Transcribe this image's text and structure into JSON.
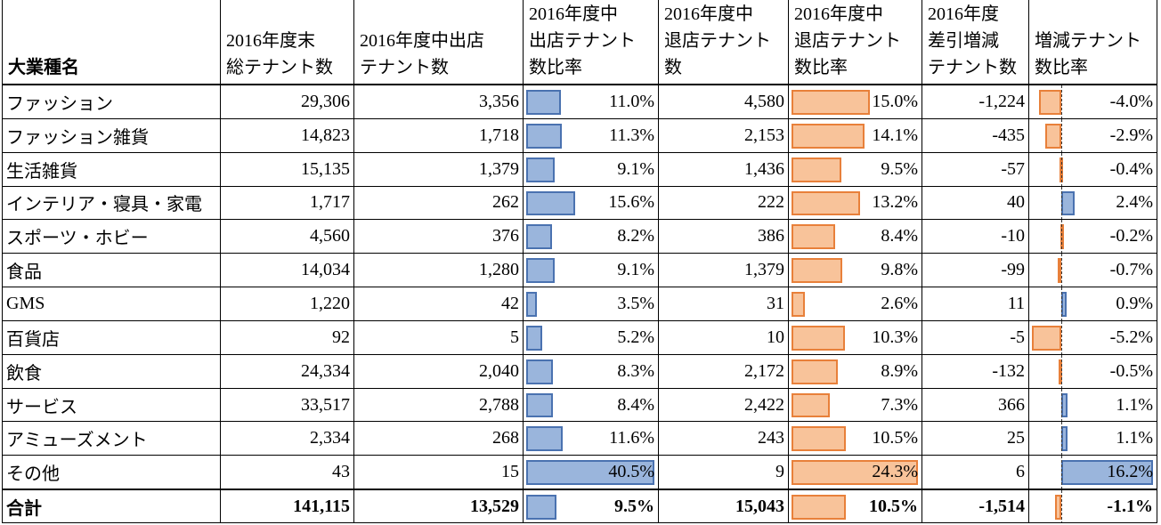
{
  "table": {
    "header": [
      [
        "大業種名"
      ],
      [
        "2016年度末",
        "総テナント数"
      ],
      [
        "2016年度中出店",
        "テナント数"
      ],
      [
        "2016年度中",
        "出店テナント",
        "数比率"
      ],
      [
        "2016年度中",
        "退店テナント",
        "数"
      ],
      [
        "2016年度中",
        "退店テナント",
        "数比率"
      ],
      [
        "2016年度",
        "差引増減",
        "テナント数"
      ],
      [
        "増減テナント",
        "数比率"
      ]
    ],
    "rows": [
      [
        "ファッション",
        "29,306",
        "3,356",
        "11.0%",
        "4,580",
        "15.0%",
        "-1,224",
        "-4.0%"
      ],
      [
        "ファッション雑貨",
        "14,823",
        "1,718",
        "11.3%",
        "2,153",
        "14.1%",
        "-435",
        "-2.9%"
      ],
      [
        "生活雑貨",
        "15,135",
        "1,379",
        "9.1%",
        "1,436",
        "9.5%",
        "-57",
        "-0.4%"
      ],
      [
        "インテリア・寝具・家電",
        "1,717",
        "262",
        "15.6%",
        "222",
        "13.2%",
        "40",
        "2.4%"
      ],
      [
        "スポーツ・ホビー",
        "4,560",
        "376",
        "8.2%",
        "386",
        "8.4%",
        "-10",
        "-0.2%"
      ],
      [
        "食品",
        "14,034",
        "1,280",
        "9.1%",
        "1,379",
        "9.8%",
        "-99",
        "-0.7%"
      ],
      [
        "GMS",
        "1,220",
        "42",
        "3.5%",
        "31",
        "2.6%",
        "11",
        "0.9%"
      ],
      [
        "百貨店",
        "92",
        "5",
        "5.2%",
        "10",
        "10.3%",
        "-5",
        "-5.2%"
      ],
      [
        "飲食",
        "24,334",
        "2,040",
        "8.3%",
        "2,172",
        "8.9%",
        "-132",
        "-0.5%"
      ],
      [
        "サービス",
        "33,517",
        "2,788",
        "8.4%",
        "2,422",
        "7.3%",
        "366",
        "1.1%"
      ],
      [
        "アミューズメント",
        "2,334",
        "268",
        "11.6%",
        "243",
        "10.5%",
        "25",
        "1.1%"
      ],
      [
        "その他",
        "43",
        "15",
        "40.5%",
        "9",
        "24.3%",
        "6",
        "16.2%"
      ],
      [
        "合計",
        "141,115",
        "13,529",
        "9.5%",
        "15,043",
        "10.5%",
        "-1,514",
        "-1.1%"
      ]
    ]
  }
}
